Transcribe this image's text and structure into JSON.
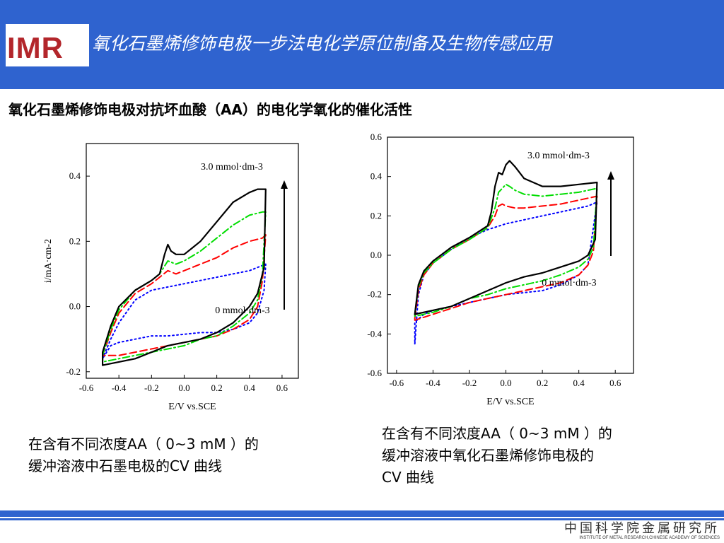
{
  "header": {
    "logo_text": "IMR",
    "title": "氧化石墨烯修饰电极一步法电化学原位制备及生物传感应用"
  },
  "subtitle": "氧化石墨烯修饰电极对抗坏血酸（AA）的电化学氧化的催化活性",
  "captions": {
    "left": [
      "在含有不同浓度AA（ 0~3 mM ）的",
      "缓冲溶液中石墨电极的CV 曲线"
    ],
    "right": [
      "在含有不同浓度AA（ 0~3 mM ）的",
      "缓冲溶液中氧化石墨烯修饰电极的",
      "CV 曲线"
    ]
  },
  "footer": {
    "institute_cn": "中国科学院金属研究所",
    "institute_en": "INSTITUTE OF METAL RESEARCH,CHINESE ACADEMY OF SCIENCES"
  },
  "colors": {
    "header_bg": "#2f63cf",
    "title_text": "#ffffff",
    "logo": "#b3262b"
  },
  "chart_data": [
    {
      "type": "line",
      "xlabel": "E/V vs.SCE",
      "ylabel": "i/mA·cm-2",
      "xlim": [
        -0.6,
        0.7
      ],
      "ylim": [
        -0.22,
        0.5
      ],
      "xticks": [
        "-0.6",
        "-0.4",
        "-0.2",
        "0.0",
        "0.2",
        "0.4",
        "0.6"
      ],
      "yticks": [
        "-0.2",
        "0.0",
        "0.2",
        "0.4"
      ],
      "annotations": [
        "3.0 mmol·dm-3",
        "0 mmol·dm-3"
      ],
      "series": [
        {
          "color": "#0000ff",
          "style": "dot",
          "x": [
            -0.5,
            -0.45,
            -0.4,
            -0.3,
            -0.2,
            -0.1,
            0.0,
            0.1,
            0.2,
            0.3,
            0.4,
            0.45,
            0.5,
            0.49,
            0.45,
            0.4,
            0.3,
            0.2,
            0.1,
            0.0,
            -0.1,
            -0.2,
            -0.3,
            -0.4,
            -0.45,
            -0.5
          ],
          "y": [
            -0.16,
            -0.1,
            -0.05,
            0.02,
            0.05,
            0.06,
            0.07,
            0.08,
            0.09,
            0.1,
            0.11,
            0.12,
            0.13,
            0.05,
            -0.02,
            -0.05,
            -0.07,
            -0.08,
            -0.08,
            -0.085,
            -0.09,
            -0.09,
            -0.1,
            -0.11,
            -0.12,
            -0.16
          ]
        },
        {
          "color": "#ff0000",
          "style": "dash",
          "x": [
            -0.5,
            -0.45,
            -0.4,
            -0.3,
            -0.2,
            -0.15,
            -0.1,
            -0.05,
            0.0,
            0.1,
            0.2,
            0.3,
            0.4,
            0.48,
            0.5,
            0.48,
            0.45,
            0.4,
            0.3,
            0.2,
            0.1,
            0.0,
            -0.1,
            -0.2,
            -0.3,
            -0.4,
            -0.5
          ],
          "y": [
            -0.15,
            -0.08,
            -0.02,
            0.04,
            0.07,
            0.09,
            0.11,
            0.1,
            0.11,
            0.13,
            0.15,
            0.18,
            0.2,
            0.21,
            0.22,
            0.08,
            0.0,
            -0.04,
            -0.07,
            -0.09,
            -0.1,
            -0.11,
            -0.12,
            -0.13,
            -0.14,
            -0.15,
            -0.15
          ]
        },
        {
          "color": "#00dd00",
          "style": "dashdot",
          "x": [
            -0.5,
            -0.45,
            -0.4,
            -0.3,
            -0.2,
            -0.15,
            -0.1,
            -0.05,
            0.0,
            0.1,
            0.2,
            0.3,
            0.4,
            0.48,
            0.5,
            0.48,
            0.45,
            0.4,
            0.3,
            0.2,
            0.1,
            0.0,
            -0.1,
            -0.2,
            -0.3,
            -0.4,
            -0.5
          ],
          "y": [
            -0.15,
            -0.07,
            -0.01,
            0.05,
            0.08,
            0.1,
            0.14,
            0.13,
            0.14,
            0.17,
            0.21,
            0.25,
            0.28,
            0.29,
            0.29,
            0.1,
            0.02,
            -0.02,
            -0.06,
            -0.09,
            -0.1,
            -0.12,
            -0.13,
            -0.14,
            -0.15,
            -0.16,
            -0.17
          ]
        },
        {
          "color": "#000000",
          "style": "solid",
          "x": [
            -0.5,
            -0.45,
            -0.4,
            -0.3,
            -0.2,
            -0.15,
            -0.12,
            -0.1,
            -0.08,
            -0.05,
            0.0,
            0.05,
            0.1,
            0.2,
            0.3,
            0.4,
            0.45,
            0.5,
            0.49,
            0.45,
            0.4,
            0.3,
            0.2,
            0.1,
            0.0,
            -0.1,
            -0.2,
            -0.3,
            -0.4,
            -0.5
          ],
          "y": [
            -0.14,
            -0.06,
            0.0,
            0.05,
            0.08,
            0.1,
            0.16,
            0.19,
            0.17,
            0.16,
            0.16,
            0.18,
            0.2,
            0.26,
            0.32,
            0.35,
            0.36,
            0.36,
            0.12,
            0.04,
            0.0,
            -0.05,
            -0.08,
            -0.1,
            -0.11,
            -0.12,
            -0.14,
            -0.16,
            -0.17,
            -0.18
          ]
        }
      ]
    },
    {
      "type": "line",
      "xlabel": "E/V vs.SCE",
      "ylabel": "i/mA·cm-2",
      "xlim": [
        -0.65,
        0.7
      ],
      "ylim": [
        -0.6,
        0.6
      ],
      "xticks": [
        "-0.6",
        "-0.4",
        "-0.2",
        "0.0",
        "0.2",
        "0.4",
        "0.6"
      ],
      "yticks": [
        "-0.6",
        "-0.4",
        "-0.2",
        "0.0",
        "0.2",
        "0.4",
        "0.6"
      ],
      "annotations": [
        "3.0 mmol·dm-3",
        "0 mmol·dm-3"
      ],
      "series": [
        {
          "color": "#0000ff",
          "style": "dot",
          "x": [
            -0.5,
            -0.48,
            -0.45,
            -0.4,
            -0.3,
            -0.2,
            -0.1,
            0.0,
            0.1,
            0.2,
            0.3,
            0.4,
            0.45,
            0.5,
            0.45,
            0.4,
            0.3,
            0.2,
            0.1,
            0.0,
            -0.1,
            -0.2,
            -0.3,
            -0.4,
            -0.45,
            -0.5
          ],
          "y": [
            -0.45,
            -0.2,
            -0.1,
            -0.04,
            0.03,
            0.09,
            0.13,
            0.16,
            0.18,
            0.2,
            0.22,
            0.24,
            0.25,
            0.27,
            -0.05,
            -0.1,
            -0.15,
            -0.18,
            -0.19,
            -0.2,
            -0.22,
            -0.24,
            -0.26,
            -0.28,
            -0.3,
            -0.34
          ]
        },
        {
          "color": "#ff0000",
          "style": "dash",
          "x": [
            -0.5,
            -0.48,
            -0.45,
            -0.4,
            -0.3,
            -0.2,
            -0.1,
            -0.06,
            -0.04,
            -0.02,
            0.0,
            0.05,
            0.1,
            0.2,
            0.3,
            0.4,
            0.5,
            0.48,
            0.45,
            0.4,
            0.3,
            0.2,
            0.1,
            0.0,
            -0.1,
            -0.2,
            -0.3,
            -0.4,
            -0.5
          ],
          "y": [
            -0.32,
            -0.18,
            -0.1,
            -0.04,
            0.03,
            0.08,
            0.14,
            0.2,
            0.25,
            0.26,
            0.25,
            0.24,
            0.24,
            0.25,
            0.26,
            0.28,
            0.3,
            0.02,
            -0.05,
            -0.1,
            -0.14,
            -0.16,
            -0.18,
            -0.2,
            -0.22,
            -0.24,
            -0.27,
            -0.3,
            -0.33
          ]
        },
        {
          "color": "#00dd00",
          "style": "dashdot",
          "x": [
            -0.5,
            -0.48,
            -0.45,
            -0.4,
            -0.3,
            -0.2,
            -0.1,
            -0.06,
            -0.04,
            -0.02,
            0.0,
            0.02,
            0.05,
            0.1,
            0.2,
            0.3,
            0.4,
            0.5,
            0.48,
            0.45,
            0.4,
            0.3,
            0.2,
            0.1,
            0.0,
            -0.1,
            -0.2,
            -0.3,
            -0.4,
            -0.5
          ],
          "y": [
            -0.3,
            -0.16,
            -0.09,
            -0.04,
            0.03,
            0.08,
            0.14,
            0.24,
            0.32,
            0.34,
            0.36,
            0.35,
            0.33,
            0.31,
            0.3,
            0.31,
            0.32,
            0.34,
            0.04,
            -0.02,
            -0.06,
            -0.1,
            -0.13,
            -0.15,
            -0.17,
            -0.2,
            -0.22,
            -0.26,
            -0.29,
            -0.31
          ]
        },
        {
          "color": "#000000",
          "style": "solid",
          "x": [
            -0.5,
            -0.48,
            -0.45,
            -0.4,
            -0.3,
            -0.2,
            -0.1,
            -0.08,
            -0.06,
            -0.04,
            -0.02,
            0.0,
            0.02,
            0.05,
            0.1,
            0.2,
            0.3,
            0.4,
            0.5,
            0.49,
            0.45,
            0.4,
            0.3,
            0.2,
            0.1,
            0.0,
            -0.1,
            -0.2,
            -0.3,
            -0.4,
            -0.5
          ],
          "y": [
            -0.3,
            -0.15,
            -0.08,
            -0.03,
            0.04,
            0.09,
            0.15,
            0.22,
            0.35,
            0.42,
            0.41,
            0.46,
            0.48,
            0.45,
            0.39,
            0.35,
            0.35,
            0.36,
            0.37,
            0.08,
            0.0,
            -0.03,
            -0.06,
            -0.09,
            -0.11,
            -0.14,
            -0.18,
            -0.22,
            -0.26,
            -0.28,
            -0.3
          ]
        }
      ]
    }
  ]
}
